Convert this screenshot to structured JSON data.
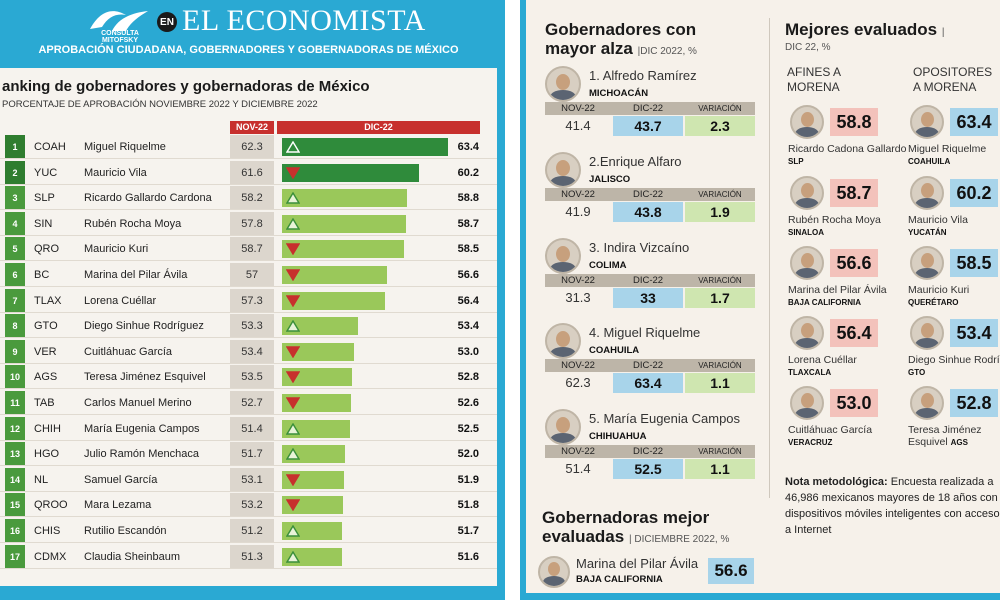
{
  "header": {
    "logo_text": "CONSULTA MITOFSKY",
    "en_badge": "EN",
    "brand": "EL ECONOMISTA",
    "subtitle": "APROBACIÓN CIUDADANA, GOBERNADORES Y GOBERNADORAS DE MÉXICO"
  },
  "ranking": {
    "title": "anking de gobernadores y gobernadoras de México",
    "subtitle": "PORCENTAJE DE APROBACIÓN NOVIEMBRE 2022 Y DICIEMBRE 2022",
    "head_nov": "NOV-22",
    "head_dic": "DIC-22"
  },
  "chart_data": {
    "type": "bar",
    "title": "anking de gobernadores y gobernadoras de México",
    "subtitle": "PORCENTAJE DE APROBACIÓN NOVIEMBRE 2022 Y DICIEMBRE 2022",
    "columns": [
      "NOV-22",
      "DIC-22"
    ],
    "rows": [
      {
        "rank": "1",
        "state": "COAH",
        "name": "Miguel Riquelme",
        "nov": 62.3,
        "nov_label": "62.3",
        "dic": 63.4,
        "dic_label": "63.4",
        "trend": "up"
      },
      {
        "rank": "2",
        "state": "YUC",
        "name": "Mauricio Vila",
        "nov": 61.6,
        "nov_label": "61.6",
        "dic": 60.2,
        "dic_label": "60.2",
        "trend": "down"
      },
      {
        "rank": "3",
        "state": "SLP",
        "name": "Ricardo Gallardo Cardona",
        "nov": 58.2,
        "nov_label": "58.2",
        "dic": 58.8,
        "dic_label": "58.8",
        "trend": "up"
      },
      {
        "rank": "4",
        "state": "SIN",
        "name": "Rubén Rocha Moya",
        "nov": 57.8,
        "nov_label": "57.8",
        "dic": 58.7,
        "dic_label": "58.7",
        "trend": "up"
      },
      {
        "rank": "5",
        "state": "QRO",
        "name": "Mauricio Kuri",
        "nov": 58.7,
        "nov_label": "58.7",
        "dic": 58.5,
        "dic_label": "58.5",
        "trend": "down"
      },
      {
        "rank": "6",
        "state": "BC",
        "name": "Marina del Pilar Ávila",
        "nov": 57,
        "nov_label": "57",
        "dic": 56.6,
        "dic_label": "56.6",
        "trend": "down"
      },
      {
        "rank": "7",
        "state": "TLAX",
        "name": "Lorena Cuéllar",
        "nov": 57.3,
        "nov_label": "57.3",
        "dic": 56.4,
        "dic_label": "56.4",
        "trend": "down"
      },
      {
        "rank": "8",
        "state": "GTO",
        "name": "Diego Sinhue Rodríguez",
        "nov": 53.3,
        "nov_label": "53.3",
        "dic": 53.4,
        "dic_label": "53.4",
        "trend": "up"
      },
      {
        "rank": "9",
        "state": "VER",
        "name": "Cuitláhuac García",
        "nov": 53.4,
        "nov_label": "53.4",
        "dic": 53.0,
        "dic_label": "53.0",
        "trend": "down"
      },
      {
        "rank": "10",
        "state": "AGS",
        "name": "Teresa Jiménez Esquivel",
        "nov": 53.5,
        "nov_label": "53.5",
        "dic": 52.8,
        "dic_label": "52.8",
        "trend": "down"
      },
      {
        "rank": "11",
        "state": "TAB",
        "name": "Carlos Manuel Merino",
        "nov": 52.7,
        "nov_label": "52.7",
        "dic": 52.6,
        "dic_label": "52.6",
        "trend": "down"
      },
      {
        "rank": "12",
        "state": "CHIH",
        "name": "María Eugenia Campos",
        "nov": 51.4,
        "nov_label": "51.4",
        "dic": 52.5,
        "dic_label": "52.5",
        "trend": "up"
      },
      {
        "rank": "13",
        "state": "HGO",
        "name": "Julio Ramón Menchaca",
        "nov": 51.7,
        "nov_label": "51.7",
        "dic": 52.0,
        "dic_label": "52.0",
        "trend": "up"
      },
      {
        "rank": "14",
        "state": "NL",
        "name": "Samuel García",
        "nov": 53.1,
        "nov_label": "53.1",
        "dic": 51.9,
        "dic_label": "51.9",
        "trend": "down"
      },
      {
        "rank": "15",
        "state": "QROO",
        "name": "Mara Lezama",
        "nov": 53.2,
        "nov_label": "53.2",
        "dic": 51.8,
        "dic_label": "51.8",
        "trend": "down"
      },
      {
        "rank": "16",
        "state": "CHIS",
        "name": "Rutilio Escandón",
        "nov": 51.2,
        "nov_label": "51.2",
        "dic": 51.7,
        "dic_label": "51.7",
        "trend": "up"
      },
      {
        "rank": "17",
        "state": "CDMX",
        "name": "Claudia Sheinbaum",
        "nov": 51.3,
        "nov_label": "51.3",
        "dic": 51.6,
        "dic_label": "51.6",
        "trend": "up"
      }
    ]
  },
  "alza": {
    "title_line1": "Gobernadores con",
    "title_line2": "mayor alza",
    "subtitle": "|DIC 2022, %",
    "col_nov": "NOV-22",
    "col_dic": "DIC-22",
    "col_var": "VARIACIÓN",
    "items": [
      {
        "name": "1. Alfredo Ramírez",
        "state": "MICHOACÁN",
        "nov": "41.4",
        "dic": "43.7",
        "var": "2.3"
      },
      {
        "name": "2.Enrique Alfaro",
        "state": "JALISCO",
        "nov": "41.9",
        "dic": "43.8",
        "var": "1.9"
      },
      {
        "name": "3. Indira Vizcaíno",
        "state": "COLIMA",
        "nov": "31.3",
        "dic": "33",
        "var": "1.7"
      },
      {
        "name": "4. Miguel Riquelme",
        "state": "COAHUILA",
        "nov": "62.3",
        "dic": "63.4",
        "var": "1.1"
      },
      {
        "name": "5. María Eugenia Campos",
        "state": "CHIHUAHUA",
        "nov": "51.4",
        "dic": "52.5",
        "var": "1.1"
      }
    ]
  },
  "mejores": {
    "title": "Mejores evaluados",
    "title_bar": "|",
    "subtitle": "DIC 22, %",
    "afines_line1": "AFINES A",
    "afines_line2": "MORENA",
    "opos_line1": "OPOSITORES",
    "opos_line2": "A MORENA",
    "afines": [
      {
        "name": "Ricardo Cadona Gallardo",
        "state": "SLP",
        "score": "58.8"
      },
      {
        "name": "Rubén Rocha Moya",
        "state": "SINALOA",
        "score": "58.7"
      },
      {
        "name": "Marina del Pilar Ávila",
        "state": "BAJA CALIFORNIA",
        "score": "56.6"
      },
      {
        "name": "Lorena Cuéllar",
        "state": "TLAXCALA",
        "score": "56.4"
      },
      {
        "name": "Cuitláhuac García",
        "state": "VERACRUZ",
        "score": "53.0"
      }
    ],
    "opositores": [
      {
        "name": "Miguel Riquelme",
        "state": "COAHUILA",
        "score": "63.4"
      },
      {
        "name": "Mauricio Vila",
        "state": "YUCATÁN",
        "score": "60.2"
      },
      {
        "name": "Mauricio Kuri",
        "state": "QUERÉTARO",
        "score": "58.5"
      },
      {
        "name": "Diego Sinhue Rodríguez",
        "state": "GTO",
        "score": "53.4"
      },
      {
        "name": "Teresa Jiménez Esquivel",
        "name_line1": "Teresa Jiménez",
        "name_line2": "Esquivel",
        "state": "AGS",
        "score": "52.8"
      }
    ]
  },
  "nota": {
    "label": "Nota metodológica:",
    "text": " Encuesta realizada a 46,986 mexicanos mayores de 18 años con dispositivos móviles inteligentes con acceso a Internet"
  },
  "gobernadoras": {
    "title_line1": "Gobernadoras mejor",
    "title_line2": "evaluadas",
    "subtitle": "| DICIEMBRE 2022, %",
    "name": "Marina del Pilar Ávila",
    "state": "BAJA CALIFORNIA",
    "score": "56.6"
  },
  "colors": {
    "blue": "#2aa9d3",
    "red_header": "#c7302d",
    "bar_green_light": "#9ac85a",
    "bar_green_dark": "#2f8b3b",
    "up_arrow": "#3a8f3a",
    "down_arrow": "#c7302d"
  }
}
